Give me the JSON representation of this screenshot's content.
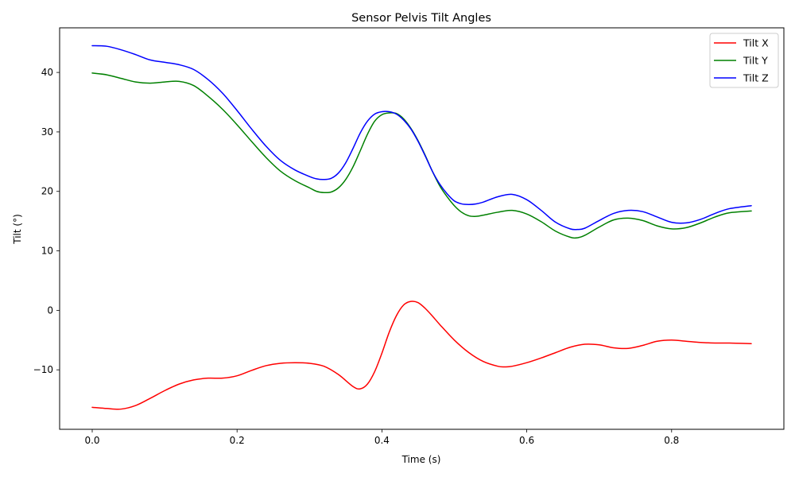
{
  "chart_data": {
    "type": "line",
    "title": "Sensor Pelvis Tilt Angles",
    "xlabel": "Time (s)",
    "ylabel": "Tilt (°)",
    "xlim": [
      -0.045,
      0.955
    ],
    "ylim": [
      -20,
      47.5
    ],
    "xticks": [
      0.0,
      0.2,
      0.4,
      0.6,
      0.8
    ],
    "xtick_labels": [
      "0.0",
      "0.2",
      "0.4",
      "0.6",
      "0.8"
    ],
    "yticks": [
      -10,
      0,
      10,
      20,
      30,
      40
    ],
    "ytick_labels": [
      "−10",
      "0",
      "10",
      "20",
      "30",
      "40"
    ],
    "grid": false,
    "legend_position": "top-right",
    "series": [
      {
        "name": "Tilt X",
        "color": "#ff0000",
        "x": [
          0.0,
          0.02,
          0.04,
          0.06,
          0.08,
          0.1,
          0.12,
          0.14,
          0.16,
          0.18,
          0.2,
          0.22,
          0.24,
          0.26,
          0.28,
          0.3,
          0.32,
          0.34,
          0.36,
          0.37,
          0.38,
          0.39,
          0.4,
          0.41,
          0.42,
          0.43,
          0.44,
          0.45,
          0.46,
          0.47,
          0.48,
          0.5,
          0.52,
          0.54,
          0.56,
          0.57,
          0.58,
          0.6,
          0.62,
          0.64,
          0.66,
          0.68,
          0.7,
          0.72,
          0.74,
          0.76,
          0.78,
          0.8,
          0.82,
          0.84,
          0.86,
          0.88,
          0.91
        ],
        "y": [
          -16.3,
          -16.5,
          -16.6,
          -16.0,
          -14.8,
          -13.5,
          -12.4,
          -11.7,
          -11.4,
          -11.4,
          -11.0,
          -10.1,
          -9.3,
          -8.9,
          -8.8,
          -8.9,
          -9.4,
          -10.8,
          -12.8,
          -13.2,
          -12.4,
          -10.3,
          -7.2,
          -3.7,
          -0.9,
          0.9,
          1.5,
          1.3,
          0.3,
          -1.0,
          -2.4,
          -5.0,
          -7.1,
          -8.6,
          -9.4,
          -9.5,
          -9.4,
          -8.8,
          -8.0,
          -7.1,
          -6.2,
          -5.7,
          -5.8,
          -6.3,
          -6.4,
          -5.9,
          -5.2,
          -5.0,
          -5.2,
          -5.4,
          -5.5,
          -5.5,
          -5.6
        ]
      },
      {
        "name": "Tilt Y",
        "color": "#008000",
        "x": [
          0.0,
          0.02,
          0.04,
          0.06,
          0.08,
          0.1,
          0.12,
          0.14,
          0.16,
          0.18,
          0.2,
          0.22,
          0.24,
          0.26,
          0.28,
          0.3,
          0.31,
          0.32,
          0.33,
          0.34,
          0.35,
          0.36,
          0.37,
          0.38,
          0.39,
          0.4,
          0.41,
          0.42,
          0.43,
          0.44,
          0.45,
          0.46,
          0.47,
          0.48,
          0.49,
          0.5,
          0.51,
          0.52,
          0.53,
          0.54,
          0.56,
          0.58,
          0.6,
          0.62,
          0.64,
          0.66,
          0.67,
          0.68,
          0.7,
          0.72,
          0.74,
          0.76,
          0.78,
          0.8,
          0.82,
          0.84,
          0.86,
          0.88,
          0.91
        ],
        "y": [
          39.9,
          39.6,
          39.0,
          38.4,
          38.2,
          38.4,
          38.5,
          37.8,
          36.0,
          33.8,
          31.2,
          28.4,
          25.7,
          23.4,
          21.8,
          20.6,
          20.0,
          19.8,
          19.9,
          20.6,
          22.0,
          24.1,
          26.8,
          29.6,
          31.8,
          32.9,
          33.2,
          33.1,
          32.2,
          30.6,
          28.5,
          26.0,
          23.3,
          20.9,
          19.1,
          17.6,
          16.5,
          15.9,
          15.8,
          16.0,
          16.5,
          16.8,
          16.2,
          14.9,
          13.3,
          12.3,
          12.2,
          12.6,
          14.0,
          15.2,
          15.5,
          15.1,
          14.2,
          13.7,
          13.9,
          14.7,
          15.7,
          16.4,
          16.7
        ]
      },
      {
        "name": "Tilt Z",
        "color": "#0000ff",
        "x": [
          0.0,
          0.02,
          0.04,
          0.06,
          0.08,
          0.1,
          0.12,
          0.14,
          0.16,
          0.18,
          0.2,
          0.22,
          0.24,
          0.26,
          0.28,
          0.3,
          0.31,
          0.32,
          0.33,
          0.34,
          0.35,
          0.36,
          0.37,
          0.38,
          0.39,
          0.4,
          0.41,
          0.42,
          0.43,
          0.44,
          0.45,
          0.46,
          0.47,
          0.48,
          0.49,
          0.5,
          0.51,
          0.52,
          0.53,
          0.54,
          0.56,
          0.58,
          0.6,
          0.62,
          0.64,
          0.66,
          0.67,
          0.68,
          0.7,
          0.72,
          0.74,
          0.76,
          0.78,
          0.8,
          0.82,
          0.84,
          0.86,
          0.88,
          0.91
        ],
        "y": [
          44.5,
          44.4,
          43.8,
          43.0,
          42.1,
          41.7,
          41.3,
          40.5,
          38.8,
          36.5,
          33.6,
          30.5,
          27.6,
          25.2,
          23.6,
          22.5,
          22.1,
          22.0,
          22.2,
          23.1,
          24.8,
          27.2,
          29.8,
          31.8,
          33.0,
          33.4,
          33.4,
          33.0,
          32.0,
          30.5,
          28.4,
          25.9,
          23.3,
          21.2,
          19.6,
          18.4,
          17.9,
          17.8,
          17.9,
          18.2,
          19.1,
          19.5,
          18.6,
          16.8,
          14.8,
          13.7,
          13.6,
          13.8,
          15.1,
          16.3,
          16.8,
          16.6,
          15.7,
          14.8,
          14.7,
          15.3,
          16.3,
          17.1,
          17.6
        ]
      }
    ]
  }
}
